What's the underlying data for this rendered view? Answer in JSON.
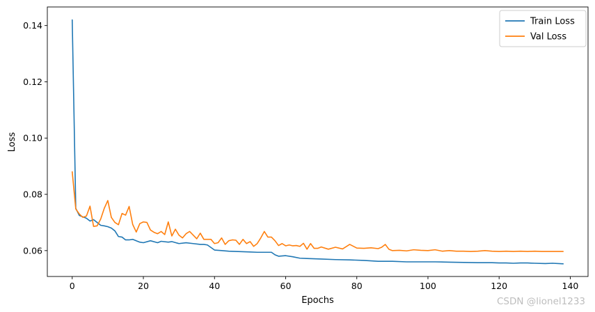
{
  "chart_data": {
    "type": "line",
    "title": "",
    "xlabel": "Epochs",
    "ylabel": "Loss",
    "xlim": [
      -7,
      145
    ],
    "ylim": [
      0.0508,
      0.1466
    ],
    "xticks": [
      0,
      20,
      40,
      60,
      80,
      100,
      120,
      140
    ],
    "yticks": [
      0.06,
      0.08,
      0.1,
      0.12,
      0.14
    ],
    "ytick_labels": [
      "0.06",
      "0.08",
      "0.10",
      "0.12",
      "0.14"
    ],
    "grid": false,
    "legend_position": "top-right",
    "series": [
      {
        "name": "Train Loss",
        "color": "#1f77b4",
        "x": [
          0,
          1,
          2,
          3,
          4,
          5,
          6,
          7,
          8,
          9,
          10,
          11,
          12,
          13,
          14,
          15,
          16,
          17,
          18,
          19,
          20,
          22,
          24,
          25,
          27,
          28,
          30,
          32,
          34,
          36,
          37,
          38,
          40,
          42,
          44,
          46,
          48,
          50,
          52,
          54,
          56,
          57,
          58,
          60,
          62,
          64,
          66,
          70,
          74,
          78,
          82,
          86,
          90,
          94,
          98,
          102,
          106,
          110,
          114,
          118,
          120,
          122,
          124,
          126,
          128,
          130,
          133,
          135,
          138
        ],
        "y": [
          0.142,
          0.075,
          0.0725,
          0.072,
          0.0715,
          0.0705,
          0.071,
          0.07,
          0.069,
          0.0688,
          0.0685,
          0.068,
          0.067,
          0.065,
          0.0648,
          0.0638,
          0.0638,
          0.064,
          0.0635,
          0.063,
          0.0628,
          0.0635,
          0.0628,
          0.0633,
          0.063,
          0.0632,
          0.0625,
          0.0628,
          0.0625,
          0.0622,
          0.0622,
          0.062,
          0.0602,
          0.06,
          0.0598,
          0.0597,
          0.0596,
          0.0595,
          0.0594,
          0.0594,
          0.0594,
          0.0585,
          0.058,
          0.0582,
          0.0578,
          0.0573,
          0.0572,
          0.057,
          0.0568,
          0.0567,
          0.0565,
          0.0562,
          0.0562,
          0.056,
          0.056,
          0.056,
          0.0559,
          0.0558,
          0.0557,
          0.0557,
          0.0556,
          0.0556,
          0.0555,
          0.0556,
          0.0556,
          0.0555,
          0.0554,
          0.0555,
          0.0553
        ]
      },
      {
        "name": "Val Loss",
        "color": "#ff7f0e",
        "x": [
          0,
          1,
          2,
          3,
          4,
          5,
          6,
          7,
          8,
          9,
          10,
          11,
          12,
          13,
          14,
          15,
          16,
          17,
          18,
          19,
          20,
          21,
          22,
          23,
          24,
          25,
          26,
          27,
          28,
          29,
          30,
          31,
          32,
          33,
          34,
          35,
          36,
          37,
          38,
          39,
          40,
          41,
          42,
          43,
          44,
          45,
          46,
          47,
          48,
          49,
          50,
          51,
          52,
          53,
          54,
          55,
          56,
          57,
          58,
          59,
          60,
          61,
          62,
          63,
          64,
          65,
          66,
          67,
          68,
          69,
          70,
          72,
          74,
          76,
          78,
          80,
          82,
          84,
          86,
          87,
          88,
          89,
          90,
          92,
          94,
          96,
          98,
          100,
          102,
          104,
          106,
          108,
          110,
          112,
          114,
          116,
          118,
          120,
          122,
          124,
          126,
          128,
          130,
          132,
          134,
          136,
          138
        ],
        "y": [
          0.088,
          0.0748,
          0.073,
          0.0718,
          0.0723,
          0.0758,
          0.0686,
          0.0688,
          0.0712,
          0.075,
          0.0778,
          0.0718,
          0.07,
          0.0692,
          0.0732,
          0.0726,
          0.0757,
          0.0693,
          0.0666,
          0.0696,
          0.0702,
          0.07,
          0.0673,
          0.0665,
          0.066,
          0.0668,
          0.0657,
          0.0702,
          0.0652,
          0.0676,
          0.0655,
          0.0645,
          0.066,
          0.0668,
          0.0655,
          0.0642,
          0.0662,
          0.064,
          0.064,
          0.064,
          0.0625,
          0.0628,
          0.0645,
          0.0622,
          0.0635,
          0.0638,
          0.0637,
          0.0622,
          0.064,
          0.0625,
          0.0632,
          0.0615,
          0.0625,
          0.0645,
          0.0668,
          0.0648,
          0.0648,
          0.0635,
          0.0618,
          0.0625,
          0.0617,
          0.062,
          0.0617,
          0.0618,
          0.0615,
          0.0626,
          0.0605,
          0.0625,
          0.0608,
          0.0608,
          0.0613,
          0.0605,
          0.0612,
          0.0606,
          0.0622,
          0.0609,
          0.0608,
          0.061,
          0.0607,
          0.0612,
          0.0622,
          0.0605,
          0.06,
          0.0601,
          0.0599,
          0.0603,
          0.0601,
          0.06,
          0.0603,
          0.0598,
          0.06,
          0.0598,
          0.0598,
          0.0597,
          0.0598,
          0.06,
          0.0598,
          0.0597,
          0.0598,
          0.0597,
          0.0598,
          0.0597,
          0.0598,
          0.0597,
          0.0597,
          0.0597,
          0.0597
        ]
      }
    ]
  },
  "watermark": "CSDN @lionel1233"
}
